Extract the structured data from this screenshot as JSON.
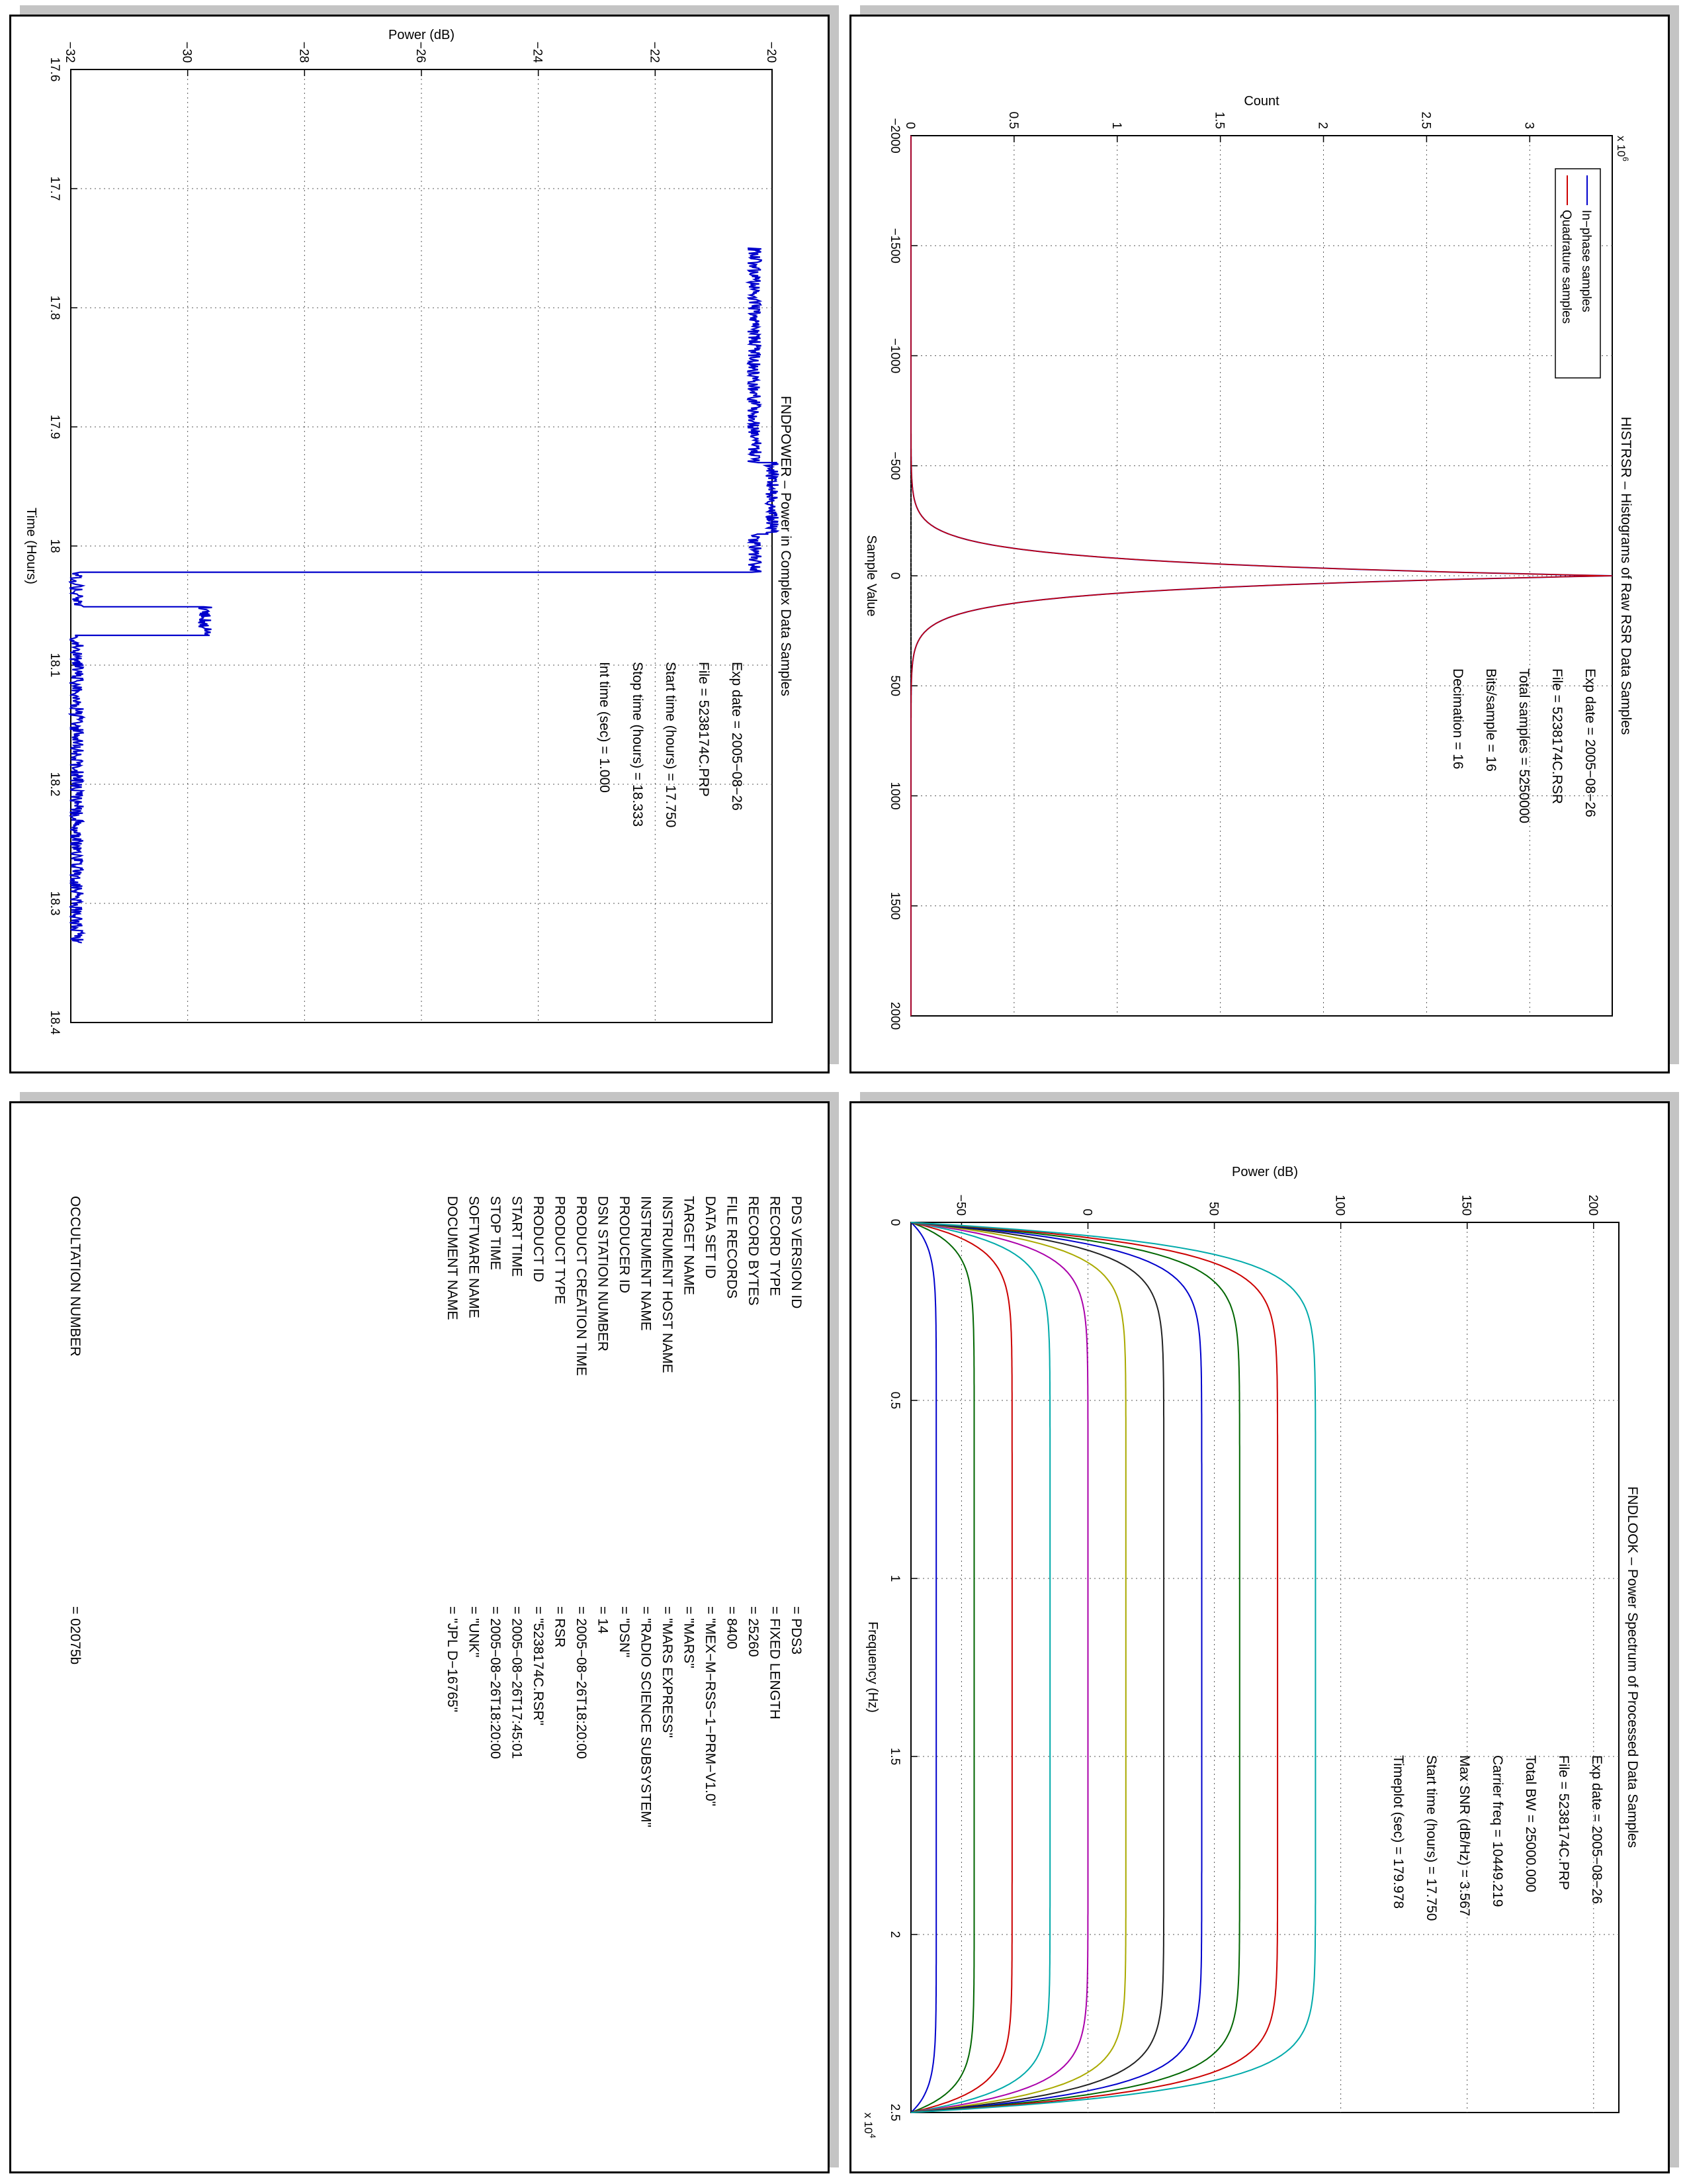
{
  "pages": {
    "power": {
      "title": "FNDPOWER – Power in Complex Data Samples",
      "ylabel": "Power (dB)",
      "xlabel": "Time (Hours)",
      "y_ticks": [
        "−32",
        "−30",
        "−28",
        "−26",
        "−24",
        "−22",
        "−20"
      ],
      "x_ticks": [
        "17.6",
        "17.7",
        "17.8",
        "17.9",
        "18",
        "18.1",
        "18.2",
        "18.3",
        "18.4"
      ],
      "info": [
        "Exp date = 2005−08−26",
        "File = 5238174C.PRP",
        "Start time (hours) = 17.750",
        "Stop time (hours) = 18.333",
        "Int time (sec)  =       1.000"
      ]
    },
    "hist": {
      "title": "HISTRSR – Histograms of Raw RSR Data Samples",
      "ylabel": "Count",
      "xlabel": "Sample Value",
      "exponent": "x 10",
      "exponent_power": "6",
      "y_ticks": [
        "0",
        "0.5",
        "1",
        "1.5",
        "2",
        "2.5",
        "3"
      ],
      "x_ticks": [
        "−2000",
        "−1500",
        "−1000",
        "−500",
        "0",
        "500",
        "1000",
        "1500",
        "2000"
      ],
      "legend": [
        "In−phase samples",
        "Quadrature samples"
      ],
      "info": [
        "Exp date = 2005−08−26",
        "File = 5238174C.RSR",
        "Total samples =   5250000",
        "Bits/sample   =           16",
        "Decimation    =           16"
      ]
    },
    "labels": {
      "fields": [
        {
          "key": "PDS VERSION ID",
          "value": "=   PDS3"
        },
        {
          "key": "RECORD TYPE",
          "value": "=   FIXED LENGTH"
        },
        {
          "key": "RECORD BYTES",
          "value": "=   25260"
        },
        {
          "key": "FILE RECORDS",
          "value": "=   8400"
        },
        {
          "key": "DATA SET ID",
          "value": "=   \"MEX−M−RSS−1−PRM−V1.0\""
        },
        {
          "key": "TARGET NAME",
          "value": "=   \"MARS\""
        },
        {
          "key": "INSTRUMENT HOST NAME",
          "value": "=   \"MARS EXPRESS\""
        },
        {
          "key": "INSTRUMENT NAME",
          "value": "=   \"RADIO SCIENCE SUBSYSTEM\""
        },
        {
          "key": "PRODUCER ID",
          "value": "=   \"DSN\""
        },
        {
          "key": "DSN STATION NUMBER",
          "value": "=   14"
        },
        {
          "key": "PRODUCT CREATION TIME",
          "value": "=   2005−08−26T18:20:00"
        },
        {
          "key": "PRODUCT TYPE",
          "value": "=   RSR"
        },
        {
          "key": "PRODUCT ID",
          "value": "=   \"5238174C.RSR\""
        },
        {
          "key": "START TIME",
          "value": "=   2005−08−26T17:45:01"
        },
        {
          "key": "STOP TIME",
          "value": "=   2005−08−26T18:20:00"
        },
        {
          "key": "SOFTWARE NAME",
          "value": "=   \"UNK\""
        },
        {
          "key": "DOCUMENT NAME",
          "value": "=   \"JPL D−16765\""
        }
      ],
      "occultation_key": "OCCULTATION NUMBER",
      "occultation_value": "=   02075b"
    },
    "spectrum": {
      "title": "FNDLOOK – Power Spectrum of Processed Data Samples",
      "ylabel": "Power (dB)",
      "xlabel": "Frequency (Hz)",
      "exponent": "x 10",
      "exponent_power": "4",
      "y_ticks": [
        "−50",
        "0",
        "50",
        "100",
        "150",
        "200"
      ],
      "x_ticks": [
        "0",
        "0.5",
        "1",
        "1.5",
        "2",
        "2.5"
      ],
      "info": [
        "Exp date = 2005−08−26",
        "File = 5238174C.PRP",
        "Total BW =      25000.000",
        "Carrier freq =   10449.219",
        "Max SNR (dB/Hz) =      3.567",
        "Start time (hours) =   17.750",
        "Timeplot (sec) =   179.978"
      ]
    }
  },
  "chart_data": [
    {
      "type": "line",
      "title": "FNDPOWER – Power in Complex Data Samples",
      "xlabel": "Time (Hours)",
      "ylabel": "Power (dB)",
      "xlim": [
        17.6,
        18.4
      ],
      "ylim": [
        -32,
        -20
      ],
      "grid": true,
      "series": [
        {
          "segments": [
            {
              "x": [
                17.75,
                17.93
              ],
              "y": -20.3
            },
            {
              "x": [
                17.93,
                17.99
              ],
              "y": -20.0
            },
            {
              "x": [
                17.99,
                18.022
              ],
              "y": -20.3
            },
            {
              "x": [
                18.022,
                18.051
              ],
              "y": -31.9
            },
            {
              "x": [
                18.051,
                18.075
              ],
              "y": -29.7
            },
            {
              "x": [
                18.075,
                18.333
              ],
              "y": -31.9
            }
          ],
          "noise": 0.12,
          "color": "#0000cc"
        }
      ]
    },
    {
      "type": "line",
      "title": "HISTRSR – Histograms of Raw RSR Data Samples",
      "xlabel": "Sample Value",
      "ylabel": "Count",
      "xlim": [
        -2000,
        2000
      ],
      "ylim": [
        0,
        3.4
      ],
      "y_multiplier": 1000000,
      "grid": true,
      "legend_position": "top-left",
      "series": [
        {
          "name": "In−phase samples",
          "color": "#0000cc",
          "shape": "laplace",
          "peak": 3.4,
          "center": 0,
          "scale": 65,
          "support": [
            -950,
            950
          ]
        },
        {
          "name": "Quadrature samples",
          "color": "#cc0000",
          "shape": "laplace",
          "peak": 3.4,
          "center": 0,
          "scale": 65,
          "support": [
            -950,
            950
          ]
        }
      ]
    },
    {
      "type": "line",
      "title": "FNDLOOK – Power Spectrum of Processed Data Samples",
      "xlabel": "Frequency (Hz)",
      "ylabel": "Power (dB)",
      "xlim": [
        0,
        25000
      ],
      "ylim": [
        -70,
        210
      ],
      "x_multiplier": 10000,
      "grid": true,
      "series": [
        {
          "color": "#0000cc",
          "plateau": -60
        },
        {
          "color": "#006600",
          "plateau": -45
        },
        {
          "color": "#cc0000",
          "plateau": -30
        },
        {
          "color": "#00aaaa",
          "plateau": -15
        },
        {
          "color": "#aa00aa",
          "plateau": 0
        },
        {
          "color": "#aaaa00",
          "plateau": 15
        },
        {
          "color": "#222222",
          "plateau": 30
        },
        {
          "color": "#0000cc",
          "plateau": 45
        },
        {
          "color": "#006600",
          "plateau": 60
        },
        {
          "color": "#cc0000",
          "plateau": 75
        },
        {
          "color": "#00aaaa",
          "plateau": 90
        }
      ]
    }
  ]
}
